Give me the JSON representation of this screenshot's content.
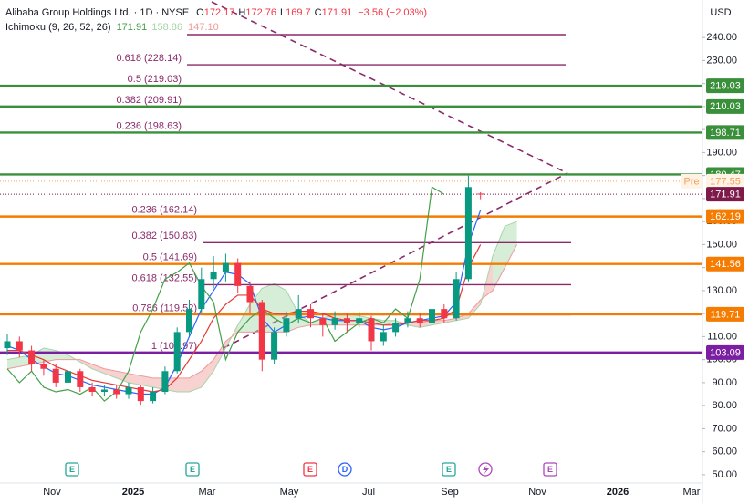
{
  "chart_data": {
    "type": "candlestick",
    "title": "Alibaba Group Holdings Ltd. · 1D · NYSE",
    "ohlc_letters": [
      "O",
      "H",
      "L",
      "C"
    ],
    "change": {
      "value": -3.56,
      "label": "−3.56 (−2.03%)"
    },
    "indicator": {
      "name": "Ichimoku (9, 26, 52, 26)",
      "values": [
        171.91,
        158.86,
        {
          "value": 147.1,
          "label": "147.10"
        }
      ]
    },
    "currency": "USD",
    "x_labels": [
      "Nov",
      "2025",
      "Mar",
      "May",
      "Jul",
      "Sep",
      "Nov",
      "2026",
      "Mar"
    ],
    "events": [
      "E",
      "E",
      "E",
      "D",
      "E",
      "E"
    ],
    "candles": {
      "up_color": "#089981",
      "down_color": "#f23645",
      "open": [
        105,
        108,
        104,
        98,
        96,
        90,
        95,
        88,
        86,
        87,
        85,
        88,
        82,
        86,
        95,
        112,
        122,
        135,
        138,
        142,
        132,
        125,
        100,
        112,
        118,
        122,
        118,
        115,
        118,
        116,
        118,
        108,
        112,
        116,
        118,
        116,
        122,
        118,
        135,
        172.17
      ],
      "high": [
        111,
        110,
        106,
        100,
        98,
        97,
        96,
        90,
        89,
        89,
        90,
        89,
        88,
        97,
        114,
        126,
        140,
        145,
        146,
        144,
        134,
        126,
        114,
        121,
        128,
        124,
        120,
        121,
        120,
        121,
        119,
        115,
        118,
        121,
        120,
        125,
        124,
        138,
        180,
        172.76
      ],
      "low": [
        102,
        101,
        95,
        93,
        88,
        88,
        86,
        84,
        84,
        83,
        83,
        80,
        81,
        85,
        94,
        110,
        120,
        131,
        134,
        129,
        120,
        95,
        98,
        110,
        116,
        114,
        110,
        113,
        112,
        114,
        104,
        106,
        110,
        114,
        114,
        114,
        116,
        117,
        134,
        169.7
      ],
      "close": [
        108,
        104,
        98,
        96,
        90,
        95,
        88,
        86,
        87,
        85,
        88,
        82,
        86,
        95,
        112,
        122,
        135,
        138,
        142,
        132,
        125,
        100,
        112,
        118,
        122,
        118,
        115,
        118,
        116,
        118,
        108,
        112,
        116,
        118,
        116,
        122,
        118,
        135,
        175,
        171.91
      ]
    },
    "lines": [
      {
        "name": "conversion",
        "color": "#2962ff",
        "values": [
          106,
          104,
          100,
          97,
          94,
          93,
          91,
          89,
          88,
          87,
          86,
          85,
          85,
          88,
          98,
          110,
          122,
          130,
          138,
          137,
          133,
          118,
          112,
          115,
          118,
          119,
          118,
          117,
          117,
          117,
          114,
          113,
          114,
          116,
          117,
          118,
          119,
          125,
          150,
          165
        ]
      },
      {
        "name": "base",
        "color": "#e53935",
        "values": [
          104,
          104,
          102,
          100,
          97,
          95,
          93,
          91,
          90,
          89,
          88,
          87,
          86,
          87,
          92,
          100,
          108,
          118,
          124,
          128,
          128,
          122,
          120,
          120,
          121,
          121,
          120,
          118,
          117,
          117,
          116,
          115,
          115,
          116,
          117,
          117,
          118,
          122,
          140,
          150
        ]
      },
      {
        "name": "lagging",
        "color": "#43a047",
        "values": [
          96,
          90,
          95,
          88,
          86,
          87,
          85,
          88,
          82,
          86,
          95,
          112,
          122,
          135,
          138,
          142,
          132,
          125,
          100,
          112,
          118,
          122,
          118,
          115,
          118,
          116,
          118,
          108,
          112,
          116,
          118,
          116,
          122,
          118,
          135,
          175,
          171.91,
          null,
          null,
          null
        ]
      }
    ],
    "cloud": {
      "up_color": "#a5d6a7",
      "down_color": "#ef9a9a",
      "span_a": [
        100,
        101,
        102,
        105,
        104,
        102,
        99,
        96,
        94,
        92,
        90,
        89,
        88,
        87,
        86,
        86,
        88,
        95,
        105,
        115,
        124,
        131,
        133,
        130,
        120,
        116,
        118,
        120,
        120,
        119,
        118,
        117,
        117,
        115,
        114,
        115,
        116,
        117,
        118,
        124,
        145,
        158,
        160
      ],
      "span_b": [
        96,
        97,
        98,
        99,
        100,
        100,
        100,
        98,
        96,
        95,
        94,
        93,
        92,
        92,
        92,
        92,
        95,
        100,
        108,
        112,
        112,
        112,
        112,
        112,
        114,
        115,
        115,
        115,
        115,
        115,
        115,
        115,
        116,
        116,
        116,
        117,
        117,
        118,
        120,
        126,
        130,
        140,
        150
      ]
    },
    "levels": [
      {
        "value": 219.03,
        "color": "#3a8f3a"
      },
      {
        "value": 210.03,
        "color": "#3a8f3a"
      },
      {
        "value": 198.71,
        "color": "#3a8f3a"
      },
      {
        "value": 180.47,
        "color": "#3a8f3a"
      },
      {
        "value": 162.19,
        "color": "#f57c00"
      },
      {
        "value": 141.56,
        "color": "#f57c00"
      },
      {
        "value": 119.71,
        "color": "#f57c00"
      },
      {
        "value": 103.09,
        "color": "#7b1fa2"
      }
    ],
    "pre_market": {
      "value": 177.55,
      "label": "Pre",
      "color": "#f5a05a"
    },
    "last": {
      "value": 171.91,
      "color": "#7d1a4a"
    },
    "fib_color": "#8b2a6b",
    "fibs": [
      [
        {
          "value": 241.25
        },
        {
          "value": 228.14,
          "label": "0.618 (228.14)"
        },
        {
          "value": 219.03,
          "label": "0.5 (219.03)"
        },
        {
          "value": 209.91,
          "label": "0.382 (209.91)"
        },
        {
          "value": 198.63,
          "label": "0.236 (198.63)"
        }
      ],
      [
        {
          "value": 162.14,
          "label": "0.236 (162.14)"
        },
        {
          "value": 150.83,
          "label": "0.382 (150.83)"
        },
        {
          "value": 141.69,
          "label": "0.5 (141.69)"
        },
        {
          "value": 132.55,
          "label": "0.618 (132.55)"
        },
        {
          "value": 119.52,
          "label": "0.786 (119.52)"
        },
        {
          "value": 102.97,
          "label": "1 (102.97)"
        }
      ]
    ],
    "ylim": [
      46.4,
      256.3
    ],
    "yticks": [
      {
        "value": 50,
        "label": "50.00"
      },
      {
        "value": 60,
        "label": "60.00"
      },
      {
        "value": 70,
        "label": "70.00"
      },
      {
        "value": 80,
        "label": "80.00"
      },
      {
        "value": 90,
        "label": "90.00"
      },
      {
        "value": 100,
        "label": "100.00"
      },
      {
        "value": 110,
        "label": "110.00"
      },
      {
        "value": 120,
        "label": "120.00"
      },
      {
        "value": 130,
        "label": "130.00"
      },
      {
        "value": 140,
        "label": "140.00"
      },
      {
        "value": 150,
        "label": "150.00"
      },
      {
        "value": 160,
        "label": "160.00"
      },
      {
        "value": 170,
        "label": "170.00"
      },
      {
        "value": 180,
        "label": "180.00"
      },
      {
        "value": 190,
        "label": "190.00"
      },
      {
        "value": 200,
        "label": "200.00"
      },
      {
        "value": 210,
        "label": "210.00"
      },
      {
        "value": 220,
        "label": "220.00"
      },
      {
        "value": 230,
        "label": "230.00"
      },
      {
        "value": 240,
        "label": "240.00"
      }
    ]
  }
}
